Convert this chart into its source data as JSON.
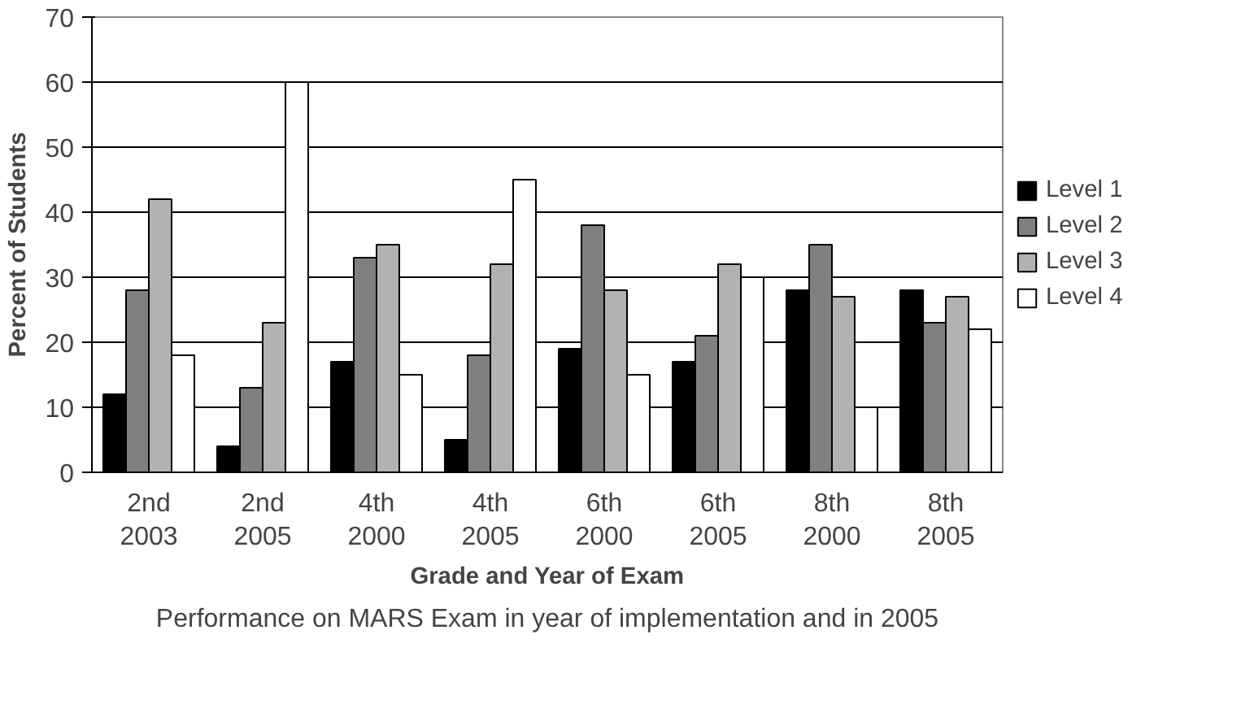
{
  "chart_data": {
    "type": "bar",
    "xlabel": "Grade and Year of Exam",
    "ylabel": "Percent of Students",
    "categories": [
      "2nd\n2003",
      "2nd\n2005",
      "4th\n2000",
      "4th\n2005",
      "6th\n2000",
      "6th\n2005",
      "8th\n2000",
      "8th\n2005"
    ],
    "series": [
      {
        "name": "Level 1",
        "color": "#000000",
        "values": [
          12,
          4,
          17,
          5,
          19,
          17,
          28,
          28
        ]
      },
      {
        "name": "Level 2",
        "color": "#808080",
        "values": [
          28,
          13,
          33,
          18,
          38,
          21,
          35,
          23
        ]
      },
      {
        "name": "Level 3",
        "color": "#b2b2b2",
        "values": [
          42,
          23,
          35,
          32,
          28,
          32,
          27,
          27
        ]
      },
      {
        "name": "Level 4",
        "color": "#ffffff",
        "values": [
          18,
          60,
          15,
          45,
          15,
          30,
          10,
          22
        ]
      }
    ],
    "ylim": [
      0,
      70
    ],
    "yticks": [
      0,
      10,
      20,
      30,
      40,
      50,
      60,
      70
    ],
    "grid": "y",
    "legend": "right",
    "annotations": [
      "Performance on MARS Exam in year of implementation and in 2005"
    ]
  }
}
